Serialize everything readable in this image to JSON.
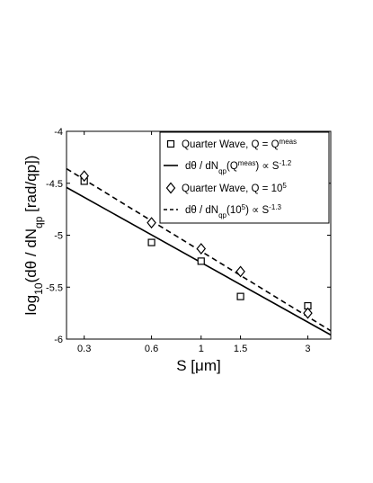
{
  "chart_data": {
    "type": "scatter",
    "title": "",
    "xscale": "log",
    "xlim": [
      0.25,
      3.8
    ],
    "ylim": [
      -6,
      -4
    ],
    "xticks": [
      0.3,
      0.6,
      1,
      1.5,
      3
    ],
    "xtick_labels": [
      "0.3",
      "0.6",
      "1",
      "1.5",
      "3"
    ],
    "yticks": [
      -6,
      -5.5,
      -5,
      -4.5,
      -4
    ],
    "ytick_labels": [
      "-6",
      "-5.5",
      "-5",
      "-4.5",
      "-4"
    ],
    "xlabel": {
      "main": "S [",
      "mu": "μ",
      "rest": "m]"
    },
    "ylabel": {
      "pre": "log",
      "sub1": "10",
      "mid": "(dθ / dN",
      "sub2": "qp",
      "post": "  [rad/qp])"
    },
    "grid": false,
    "legend_position": "top-right",
    "series": [
      {
        "label": {
          "main": "Quarter Wave, Q = Q",
          "sup": "meas"
        },
        "marker": "square",
        "points": [
          {
            "x": 0.3,
            "y": -4.48
          },
          {
            "x": 0.6,
            "y": -5.07
          },
          {
            "x": 1.0,
            "y": -5.25
          },
          {
            "x": 1.5,
            "y": -5.59
          },
          {
            "x": 3.0,
            "y": -5.68
          }
        ]
      },
      {
        "label": {
          "main": "dθ / dN",
          "sub": "qp",
          "mid": "(Q",
          "sup": "meas",
          "post": ") ∝ S",
          "exp": "-1.2"
        },
        "line": "solid",
        "fit_endpoints": [
          {
            "x": 0.25,
            "y": -4.54
          },
          {
            "x": 3.8,
            "y": -5.96
          }
        ]
      },
      {
        "label": {
          "main": "Quarter Wave, Q = 10",
          "sup": "5"
        },
        "marker": "diamond",
        "points": [
          {
            "x": 0.3,
            "y": -4.43
          },
          {
            "x": 0.6,
            "y": -4.88
          },
          {
            "x": 1.0,
            "y": -5.13
          },
          {
            "x": 1.5,
            "y": -5.35
          },
          {
            "x": 3.0,
            "y": -5.75
          }
        ]
      },
      {
        "label": {
          "main": "dθ / dN",
          "sub": "qp",
          "mid": "(10",
          "sup": "5",
          "post": ") ∝ S",
          "exp": "-1.3"
        },
        "line": "dashed",
        "fit_endpoints": [
          {
            "x": 0.25,
            "y": -4.36
          },
          {
            "x": 3.8,
            "y": -5.92
          }
        ]
      }
    ]
  }
}
